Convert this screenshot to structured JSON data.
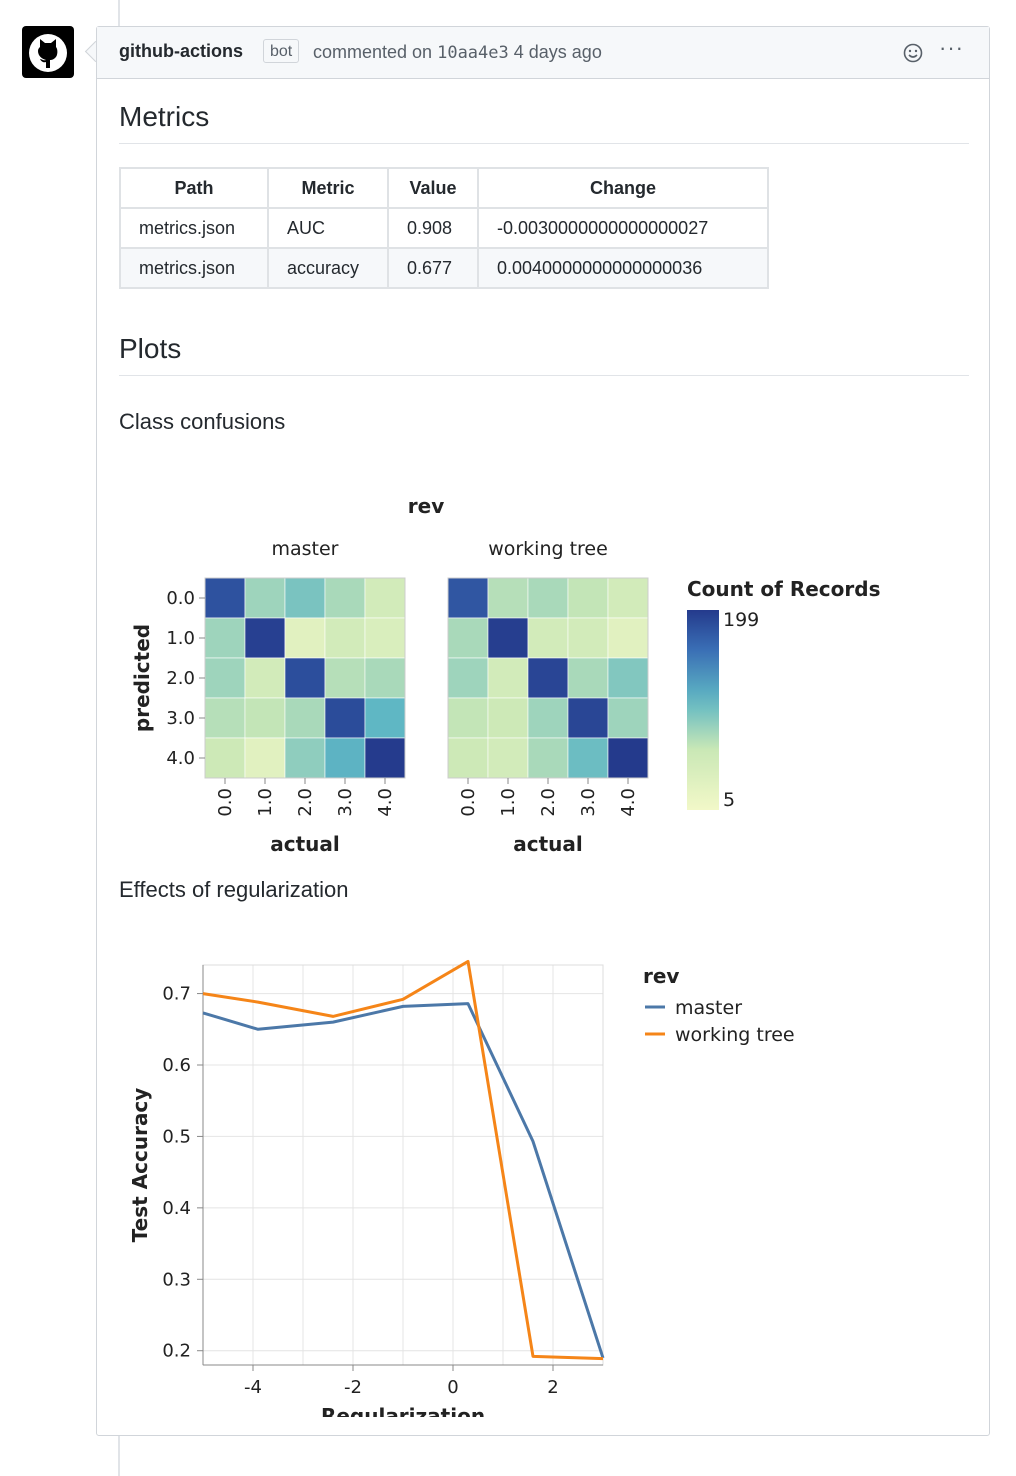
{
  "comment": {
    "author": "github-actions",
    "badge": "bot",
    "action": "commented on",
    "commit": "10aa4e3",
    "time": "4 days ago"
  },
  "icons": {
    "avatar": "github-octocat-icon",
    "emoji": "smiley-icon",
    "more": "kebab-horizontal-icon"
  },
  "more_glyph": "···",
  "metrics": {
    "heading": "Metrics",
    "columns": [
      "Path",
      "Metric",
      "Value",
      "Change"
    ],
    "rows": [
      [
        "metrics.json",
        "AUC",
        "0.908",
        "-0.0030000000000000027"
      ],
      [
        "metrics.json",
        "accuracy",
        "0.677",
        "0.0040000000000000036"
      ]
    ]
  },
  "plots": {
    "heading": "Plots",
    "confusion_heading": "Class confusions",
    "regularization_heading": "Effects of regularization"
  },
  "chart_data": [
    {
      "type": "heatmap",
      "title": "rev",
      "facets": [
        "master",
        "working tree"
      ],
      "xlabel": "actual",
      "ylabel": "predicted",
      "x_categories": [
        "0.0",
        "1.0",
        "2.0",
        "3.0",
        "4.0"
      ],
      "y_categories": [
        "0.0",
        "1.0",
        "2.0",
        "3.0",
        "4.0"
      ],
      "legend_title": "Count of Records",
      "legend_max": 199,
      "legend_min": 5,
      "legend_placement": "right",
      "matrices": [
        [
          [
            142,
            22,
            30,
            20,
            12
          ],
          [
            22,
            182,
            8,
            12,
            10
          ],
          [
            22,
            12,
            150,
            18,
            20
          ],
          [
            18,
            16,
            20,
            155,
            38
          ],
          [
            14,
            8,
            25,
            40,
            195
          ]
        ],
        [
          [
            135,
            18,
            20,
            16,
            12
          ],
          [
            20,
            188,
            12,
            12,
            8
          ],
          [
            22,
            12,
            170,
            20,
            28
          ],
          [
            16,
            14,
            22,
            168,
            22
          ],
          [
            14,
            12,
            20,
            34,
            199
          ]
        ]
      ]
    },
    {
      "type": "line",
      "xlabel": "Regularization",
      "ylabel": "Test Accuracy",
      "xlim": [
        -5,
        3
      ],
      "ylim": [
        0.18,
        0.74
      ],
      "x_ticks": [
        "-4",
        "-2",
        "0",
        "2"
      ],
      "y_ticks": [
        "0.2",
        "0.3",
        "0.4",
        "0.5",
        "0.6",
        "0.7"
      ],
      "legend_title": "rev",
      "legend_placement": "right",
      "grid": true,
      "series": [
        {
          "name": "master",
          "color": "#4c78a8",
          "x": [
            -5,
            -3.9,
            -2.4,
            -1.0,
            0.3,
            1.6,
            3.0
          ],
          "y": [
            0.673,
            0.65,
            0.66,
            0.682,
            0.686,
            0.493,
            0.19
          ]
        },
        {
          "name": "working tree",
          "color": "#f58518",
          "x": [
            -5,
            -3.9,
            -2.4,
            -1.0,
            0.3,
            1.6,
            3.0
          ],
          "y": [
            0.7,
            0.688,
            0.668,
            0.692,
            0.745,
            0.192,
            0.189
          ]
        }
      ]
    }
  ]
}
